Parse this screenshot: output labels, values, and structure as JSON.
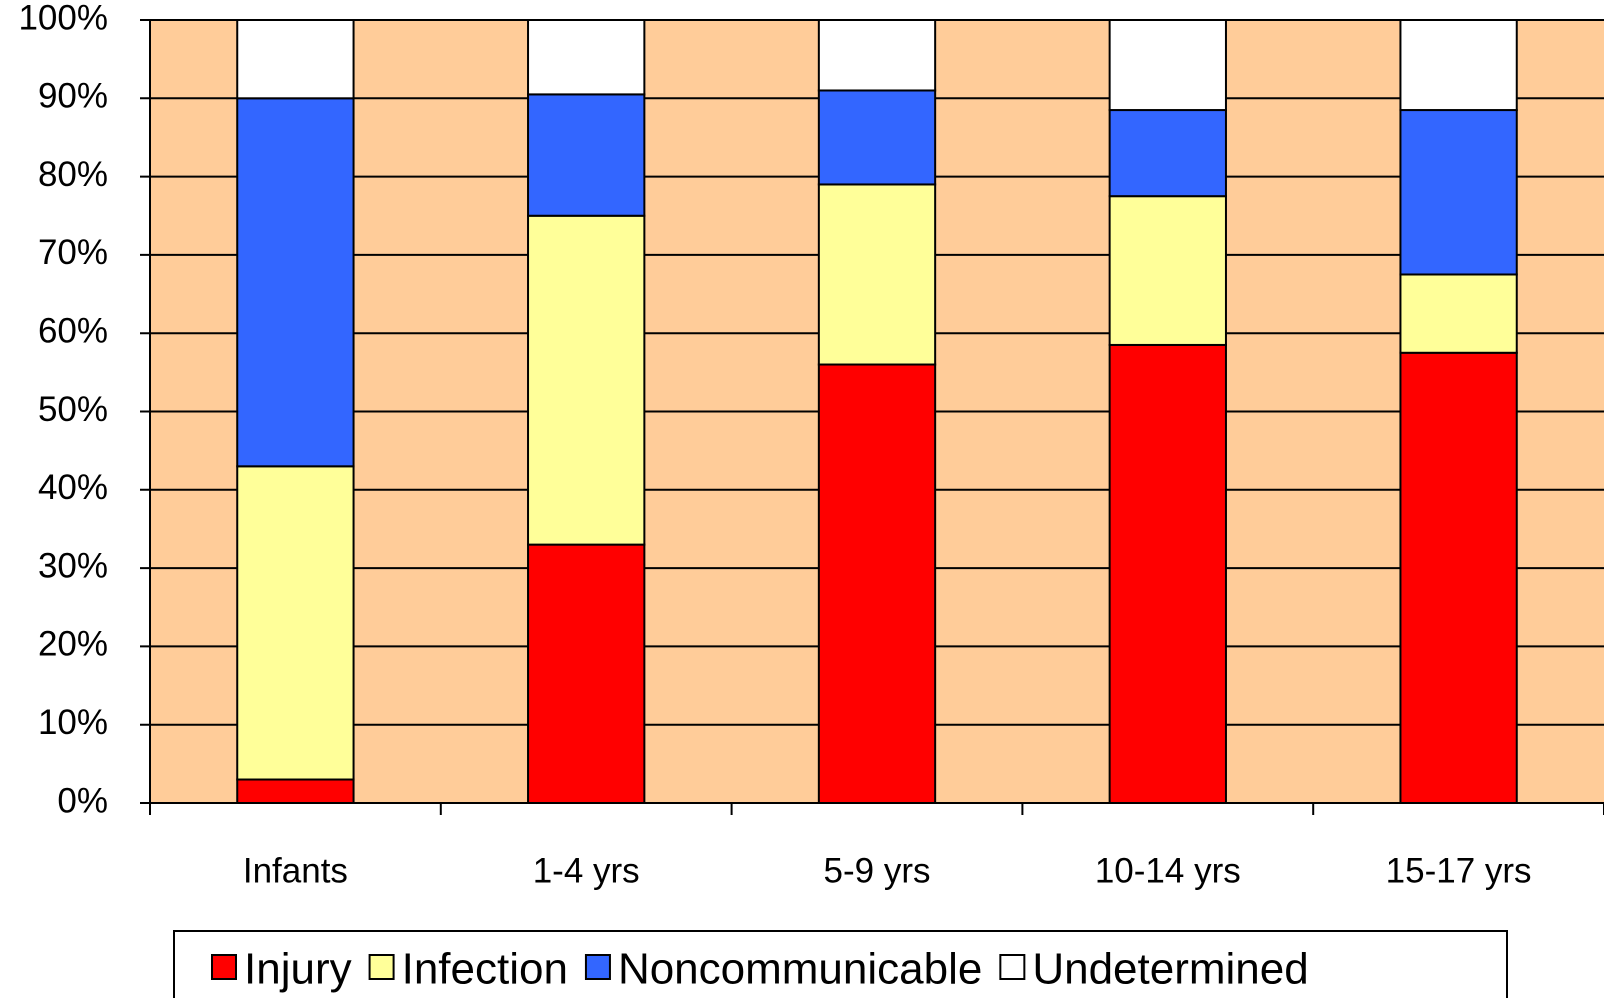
{
  "chart_data": {
    "type": "stacked_bar",
    "categories": [
      "Infants",
      "1-4 yrs",
      "5-9 yrs",
      "10-14 yrs",
      "15-17 yrs"
    ],
    "series": [
      {
        "name": "Injury",
        "color": "#ff0000",
        "values": [
          3,
          33,
          56,
          58.5,
          57.5
        ]
      },
      {
        "name": "Infection",
        "color": "#ffff99",
        "values": [
          40,
          42,
          23,
          19,
          10
        ]
      },
      {
        "name": "Noncommunicable",
        "color": "#3366ff",
        "values": [
          47,
          15.5,
          12,
          11,
          21
        ]
      },
      {
        "name": "Undetermined",
        "color": "#ffffff",
        "values": [
          10,
          9.5,
          9,
          11.5,
          11.5
        ]
      }
    ],
    "ylim": [
      0,
      100
    ],
    "yticks": [
      {
        "value": 0,
        "label": "0%"
      },
      {
        "value": 10,
        "label": "10%"
      },
      {
        "value": 20,
        "label": "20%"
      },
      {
        "value": 30,
        "label": "30%"
      },
      {
        "value": 40,
        "label": "40%"
      },
      {
        "value": 50,
        "label": "50%"
      },
      {
        "value": 60,
        "label": "60%"
      },
      {
        "value": 70,
        "label": "70%"
      },
      {
        "value": 80,
        "label": "80%"
      },
      {
        "value": 90,
        "label": "90%"
      },
      {
        "value": 100,
        "label": "100%"
      }
    ],
    "grid": true,
    "background": "#ffcc99",
    "legend": "bottom"
  }
}
